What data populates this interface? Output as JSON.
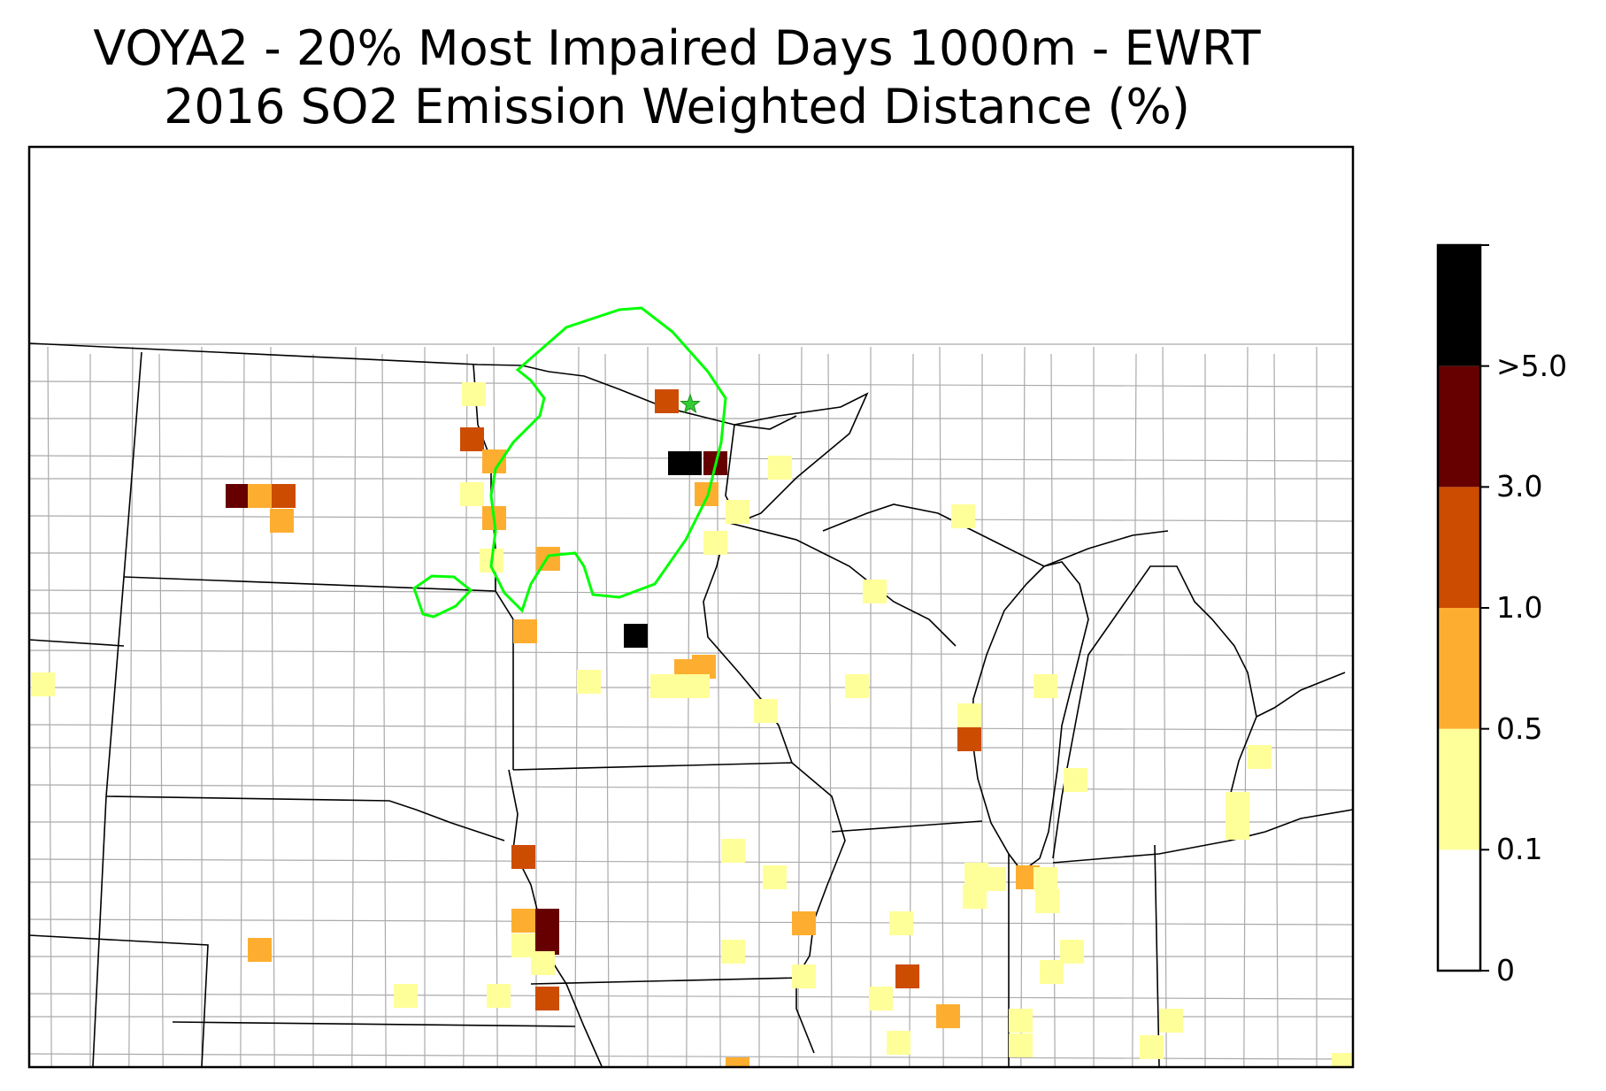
{
  "title": {
    "line1": "VOYA2 - 20% Most Impaired Days 1000m - EWRT",
    "line2": "2016 SO2 Emission Weighted Distance (%)"
  },
  "colorbar": {
    "bins": [
      {
        "from": "0",
        "to": "0.1",
        "color": "#ffffff"
      },
      {
        "from": "0.1",
        "to": "0.5",
        "color": "#ffff99"
      },
      {
        "from": "0.5",
        "to": "1.0",
        "color": "#fdae30"
      },
      {
        "from": "1.0",
        "to": "3.0",
        "color": "#cc4c02"
      },
      {
        "from": "3.0",
        "to": ">5.0",
        "color": "#660000"
      },
      {
        "from": ">5.0",
        "to": "",
        "color": "#000000"
      }
    ],
    "tick_labels": [
      "0",
      "0.1",
      "0.5",
      "1.0",
      "3.0",
      ">5.0"
    ]
  },
  "site_marker": {
    "name": "VOYA2",
    "symbol": "star",
    "color": "#33cc33"
  },
  "contour_color": "#00ff00",
  "boundary_colors": {
    "state": "#000000",
    "county": "#aaaaaa"
  }
}
